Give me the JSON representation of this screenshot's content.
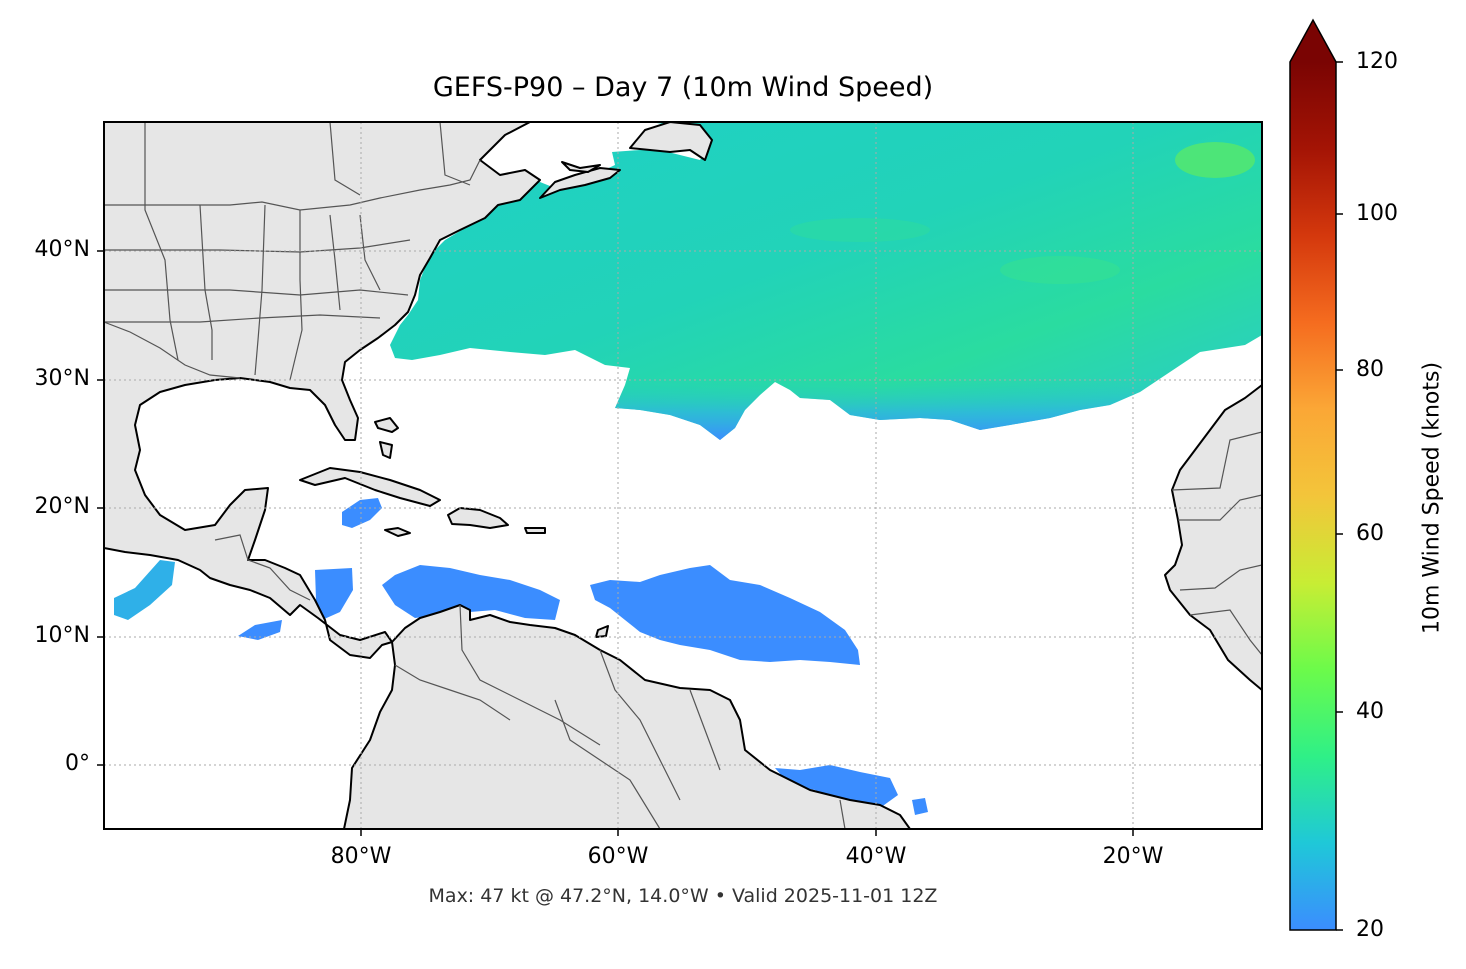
{
  "title": "GEFS-P90 – Day 7 (10m Wind Speed)",
  "footer": "Max: 47 kt @ 47.2°N, 14.0°W • Valid 2025-11-01 12Z",
  "map": {
    "extent_lon": [
      -100,
      -10
    ],
    "extent_lat": [
      -5,
      50
    ],
    "lat_ticks": [
      "40°N",
      "30°N",
      "20°N",
      "10°N",
      "0°"
    ],
    "lon_ticks": [
      "80°W",
      "60°W",
      "40°W",
      "20°W"
    ],
    "land_color": "#e6e6e6",
    "coast_color": "#000000",
    "border_color": "#555555",
    "gridlines": "dotted"
  },
  "colorbar": {
    "label": "10m Wind Speed (knots)",
    "ticks": [
      "20",
      "40",
      "60",
      "80",
      "100",
      "120"
    ],
    "range": [
      20,
      120
    ],
    "extend": "max",
    "colormap": [
      "#3b8dff",
      "#1fc8d8",
      "#2ff087",
      "#a6f83a",
      "#e6d83a",
      "#fba736",
      "#f56c1f",
      "#d4380d",
      "#a41405",
      "#7a0403"
    ]
  },
  "wind_regions": [
    {
      "name": "north-atlantic-band",
      "speed_kt": "24-47"
    },
    {
      "name": "caribbean-east",
      "speed_kt": "20-24"
    },
    {
      "name": "caribbean-central",
      "speed_kt": "20-24"
    },
    {
      "name": "tropical-atlantic",
      "speed_kt": "20-24"
    },
    {
      "name": "eastern-pacific",
      "speed_kt": "20-30"
    },
    {
      "name": "brazil-coast",
      "speed_kt": "20-24"
    }
  ]
}
